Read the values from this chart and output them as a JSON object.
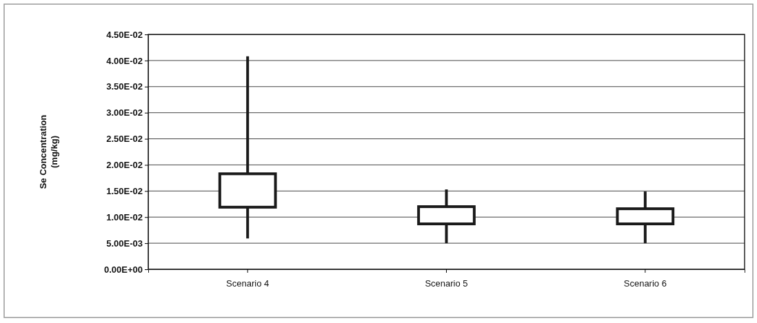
{
  "chart_data": {
    "type": "candlestick",
    "ylabel": "Se Concentration (mg/kg)",
    "categories": [
      "Scenario 4",
      "Scenario 5",
      "Scenario 6"
    ],
    "ohlc": [
      [
        0.0119,
        0.0408,
        0.0059,
        0.0183
      ],
      [
        0.0087,
        0.0153,
        0.005,
        0.012
      ],
      [
        0.0087,
        0.0149,
        0.005,
        0.0116
      ]
    ],
    "ylim": [
      0,
      0.045
    ],
    "yticks": [
      {
        "value": 0,
        "label": "0.00E+00"
      },
      {
        "value": 0.005,
        "label": "5.00E-03"
      },
      {
        "value": 0.01,
        "label": "1.00E-02"
      },
      {
        "value": 0.015,
        "label": "1.50E-02"
      },
      {
        "value": 0.02,
        "label": "2.00E-02"
      },
      {
        "value": 0.025,
        "label": "2.50E-02"
      },
      {
        "value": 0.03,
        "label": "3.00E-02"
      },
      {
        "value": 0.035,
        "label": "3.50E-02"
      },
      {
        "value": 0.04,
        "label": "4.00E-02"
      },
      {
        "value": 0.045,
        "label": "4.50E-02"
      }
    ],
    "grid": "y",
    "color": "#1a1a1a"
  }
}
